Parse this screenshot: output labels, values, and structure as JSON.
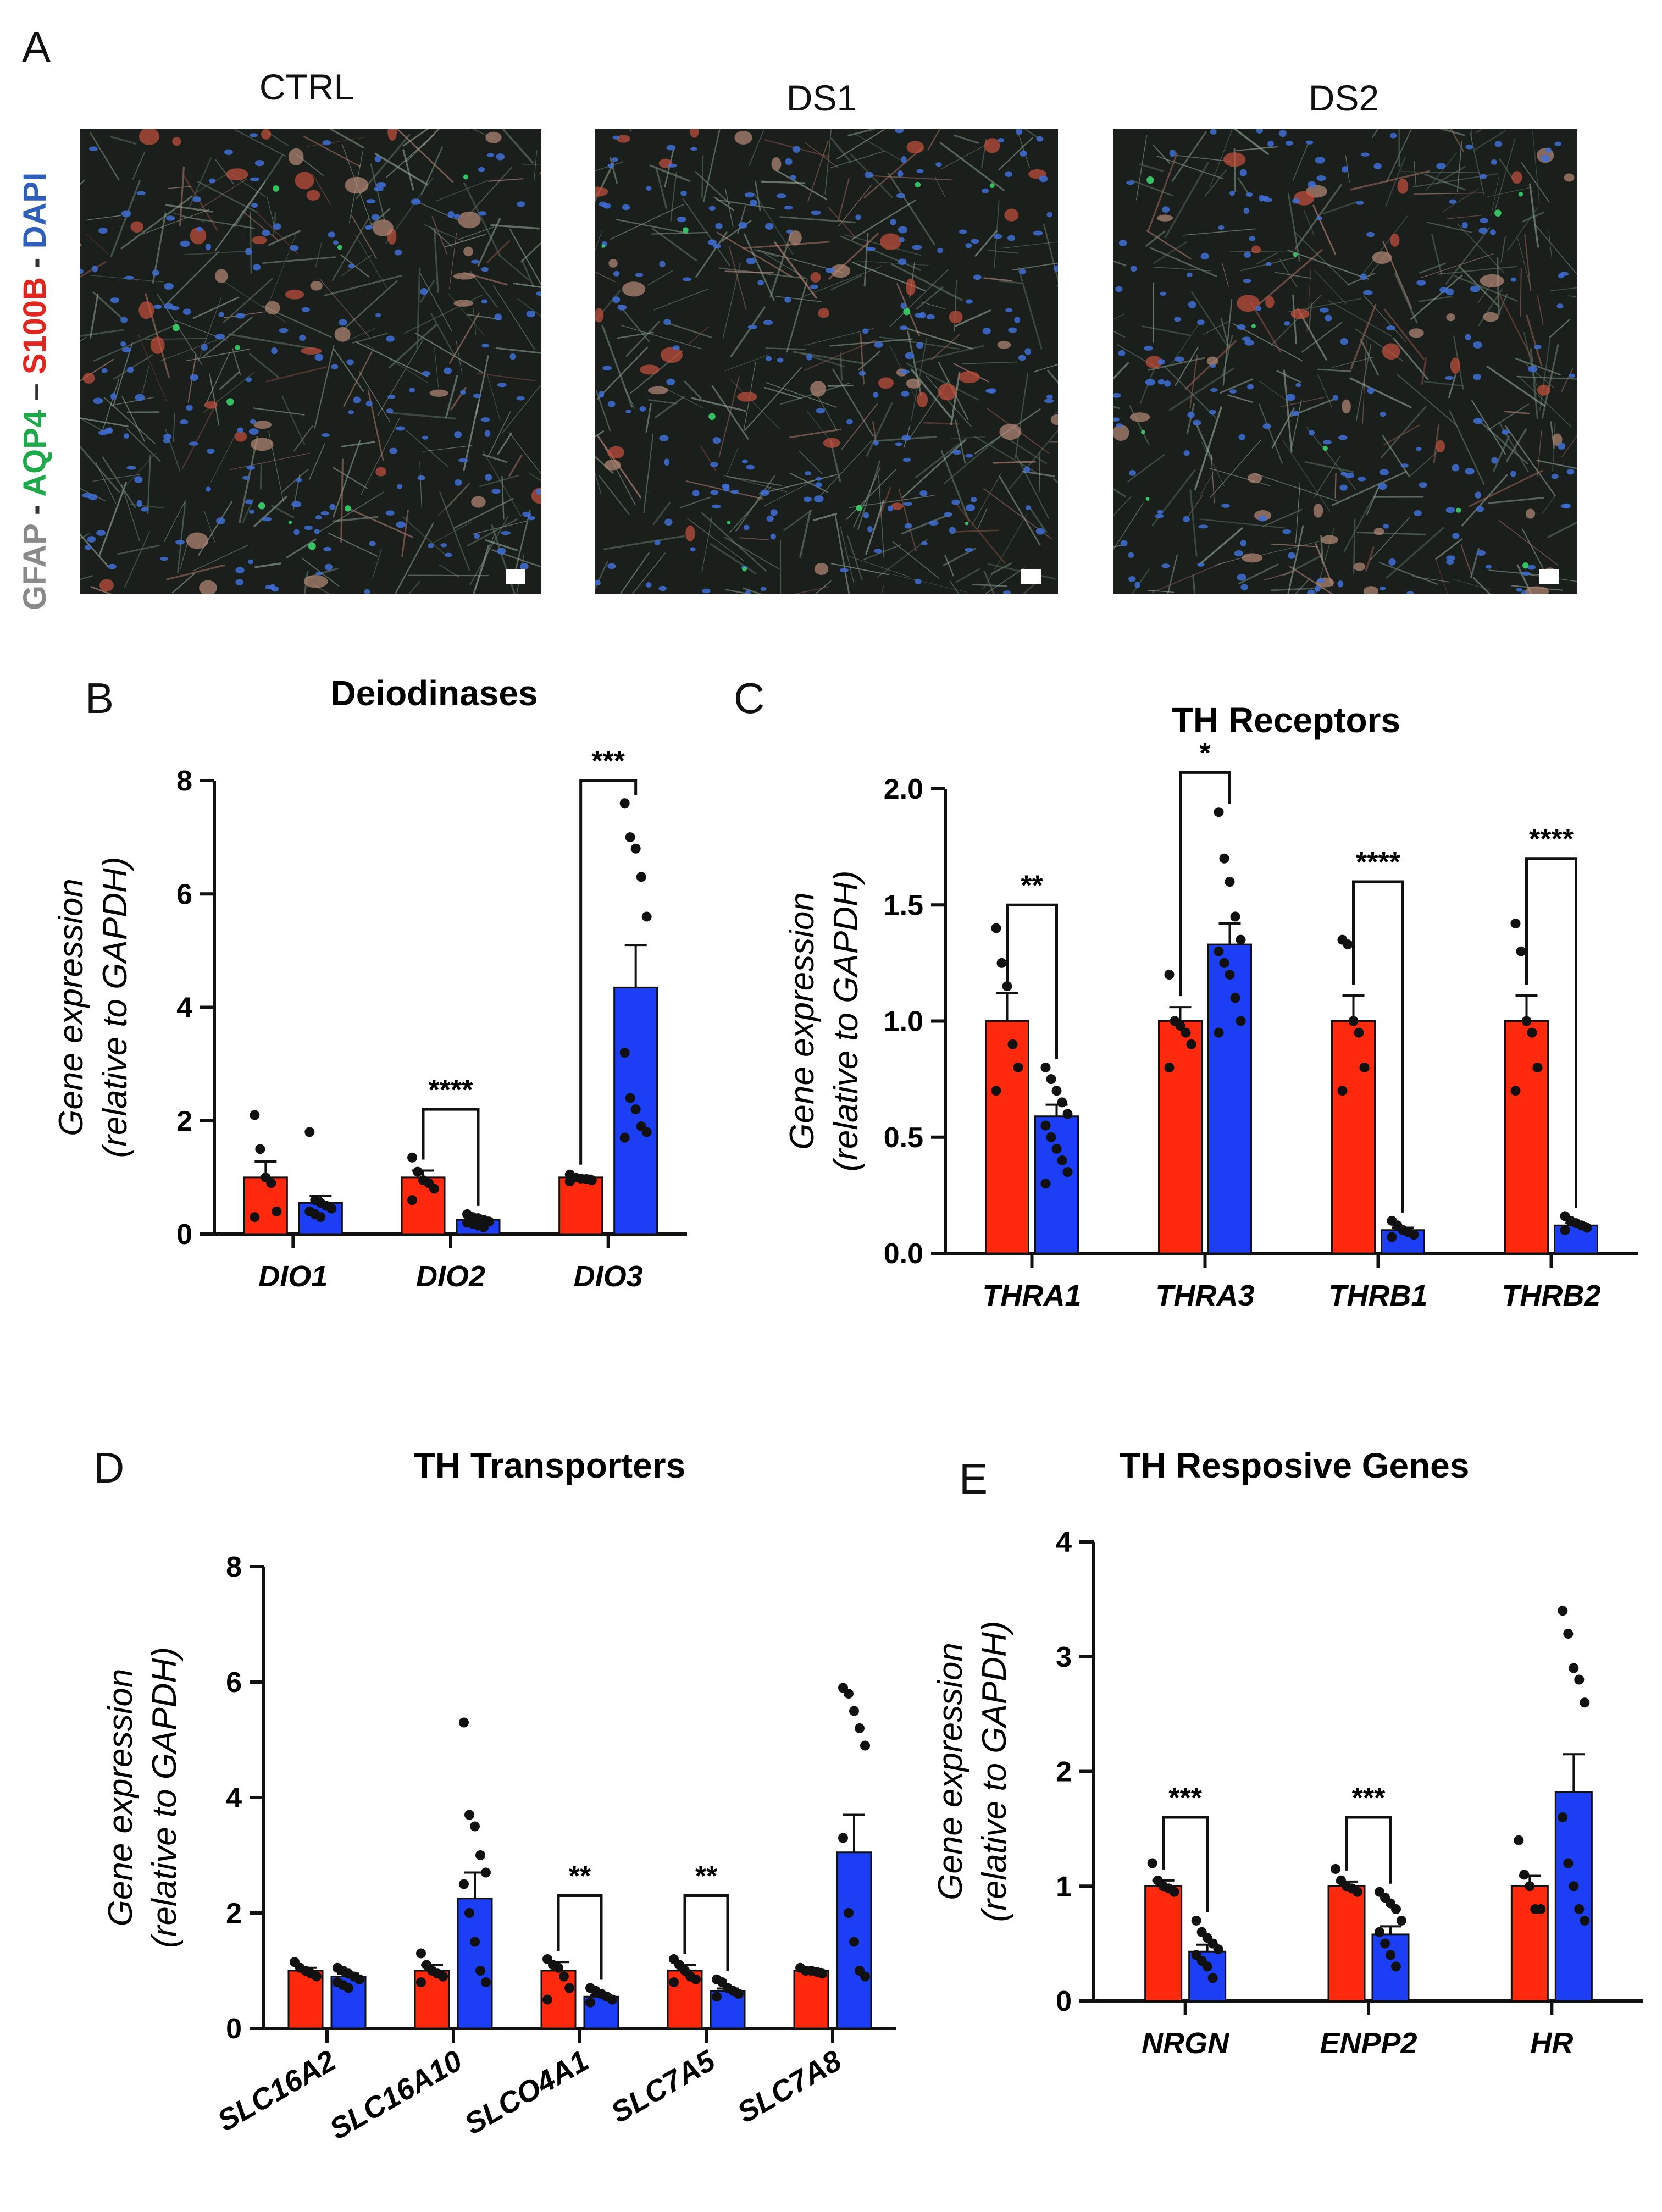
{
  "panel_letters": {
    "a": "A",
    "b": "B",
    "c": "C",
    "d": "D",
    "e": "E"
  },
  "micrographs": [
    {
      "title": "CTRL"
    },
    {
      "title": "DS1"
    },
    {
      "title": "DS2"
    }
  ],
  "stain_label": {
    "parts": [
      {
        "text": "GFAP",
        "color": "#8a8a8a"
      },
      {
        "text": " - ",
        "color": "#333333"
      },
      {
        "text": "AQP4",
        "color": "#1fa84a"
      },
      {
        "text": " – ",
        "color": "#333333"
      },
      {
        "text": "S100B",
        "color": "#e0261f"
      },
      {
        "text": " - ",
        "color": "#333333"
      },
      {
        "text": "DAPI",
        "color": "#2f5fb8"
      }
    ]
  },
  "colors": {
    "ctrl": "#ff2a0e",
    "ds": "#1c3ff5"
  },
  "chart_data": [
    {
      "panel": "B",
      "type": "bar",
      "title": "Deiodinases",
      "ylabel_line1": "Gene expression",
      "ylabel_line2": "(relative to GAPDH)",
      "ylim": [
        0,
        8
      ],
      "yticks": [
        "0",
        "2",
        "4",
        "6",
        "8"
      ],
      "ytick_values": [
        0,
        2,
        4,
        6,
        8
      ],
      "categories": [
        "DIO1",
        "DIO2",
        "DIO3"
      ],
      "series": [
        {
          "values": [
            1.0,
            1.0,
            1.0
          ],
          "sem": [
            0.28,
            0.12,
            0.03
          ],
          "points": [
            [
              2.1,
              1.5,
              1.0,
              0.9,
              0.4,
              0.3
            ],
            [
              1.35,
              1.1,
              0.95,
              0.9,
              0.8,
              0.6
            ],
            [
              1.05,
              1.0,
              0.98,
              0.97,
              0.95,
              0.93
            ]
          ]
        },
        {
          "values": [
            0.55,
            0.25,
            4.35
          ],
          "sem": [
            0.12,
            0.04,
            0.75
          ],
          "points": [
            [
              1.8,
              0.6,
              0.55,
              0.5,
              0.45,
              0.4,
              0.35,
              0.3
            ],
            [
              0.35,
              0.3,
              0.28,
              0.25,
              0.22,
              0.2,
              0.18,
              0.15,
              0.12
            ],
            [
              7.6,
              7.0,
              6.8,
              6.3,
              5.6,
              3.2,
              2.4,
              2.2,
              1.9,
              1.8,
              1.7
            ]
          ]
        }
      ],
      "significance": [
        {
          "category": "DIO2",
          "label": "****",
          "y": 2.2
        },
        {
          "category": "DIO3",
          "label": "***",
          "y": 8.0
        }
      ]
    },
    {
      "panel": "C",
      "type": "bar",
      "title": "TH Receptors",
      "ylabel_line1": "Gene expression",
      "ylabel_line2": "(relative to GAPDH)",
      "ylim": [
        0,
        2.0
      ],
      "yticks": [
        "0.0",
        "0.5",
        "1.0",
        "1.5",
        "2.0"
      ],
      "ytick_values": [
        0,
        0.5,
        1.0,
        1.5,
        2.0
      ],
      "categories": [
        "THRA1",
        "THRA3",
        "THRB1",
        "THRB2"
      ],
      "series": [
        {
          "values": [
            1.0,
            1.0,
            1.0,
            1.0
          ],
          "sem": [
            0.12,
            0.06,
            0.11,
            0.11
          ],
          "points": [
            [
              1.4,
              1.25,
              1.15,
              0.9,
              0.8,
              0.7
            ],
            [
              1.2,
              1.0,
              0.98,
              0.95,
              0.9,
              0.8
            ],
            [
              1.35,
              1.33,
              1.0,
              0.95,
              0.8,
              0.7
            ],
            [
              1.42,
              1.3,
              1.0,
              0.95,
              0.8,
              0.7
            ]
          ]
        },
        {
          "values": [
            0.59,
            1.33,
            0.1,
            0.12
          ],
          "sem": [
            0.05,
            0.09,
            0.01,
            0.01
          ],
          "points": [
            [
              0.8,
              0.75,
              0.7,
              0.65,
              0.6,
              0.55,
              0.5,
              0.45,
              0.4,
              0.35,
              0.3
            ],
            [
              1.9,
              1.7,
              1.6,
              1.45,
              1.35,
              1.3,
              1.25,
              1.2,
              1.1,
              1.0,
              0.95
            ],
            [
              0.14,
              0.12,
              0.1,
              0.09,
              0.08,
              0.07
            ],
            [
              0.16,
              0.14,
              0.13,
              0.12,
              0.11,
              0.1
            ]
          ]
        }
      ],
      "significance": [
        {
          "category": "THRA1",
          "label": "**",
          "y": 1.5
        },
        {
          "category": "THRA3",
          "label": "*",
          "y": 2.07
        },
        {
          "category": "THRB1",
          "label": "****",
          "y": 1.6
        },
        {
          "category": "THRB2",
          "label": "****",
          "y": 1.7
        }
      ]
    },
    {
      "panel": "D",
      "type": "bar",
      "title": "TH Transporters",
      "ylabel_line1": "Gene expression",
      "ylabel_line2": "(relative to GAPDH)",
      "ylim": [
        0,
        8
      ],
      "yticks": [
        "0",
        "2",
        "4",
        "6",
        "8"
      ],
      "ytick_values": [
        0,
        2,
        4,
        6,
        8
      ],
      "categories": [
        "SLC16A2",
        "SLC16A10",
        "SLCO4A1",
        "SLC7A5",
        "SLC7A8"
      ],
      "series": [
        {
          "values": [
            1.0,
            1.0,
            1.0,
            1.0,
            1.0
          ],
          "sem": [
            0.05,
            0.1,
            0.15,
            0.1,
            0.03
          ],
          "points": [
            [
              1.15,
              1.05,
              1.0,
              0.95,
              0.9
            ],
            [
              1.3,
              1.1,
              1.0,
              0.95,
              0.9,
              0.8
            ],
            [
              1.2,
              1.1,
              1.05,
              0.9,
              0.7,
              0.5
            ],
            [
              1.2,
              1.1,
              1.0,
              0.9,
              0.85,
              0.8
            ],
            [
              1.05,
              1.0,
              1.0,
              0.98,
              0.95
            ]
          ]
        },
        {
          "values": [
            0.9,
            2.25,
            0.55,
            0.65,
            3.05
          ],
          "sem": [
            0.05,
            0.45,
            0.03,
            0.04,
            0.65
          ],
          "points": [
            [
              1.05,
              1.0,
              0.95,
              0.9,
              0.85,
              0.8,
              0.75,
              0.7
            ],
            [
              5.3,
              3.7,
              3.5,
              3.0,
              2.7,
              2.5,
              2.0,
              1.5,
              1.0,
              0.8
            ],
            [
              0.7,
              0.65,
              0.6,
              0.55,
              0.5,
              0.45
            ],
            [
              0.85,
              0.8,
              0.7,
              0.65,
              0.6,
              0.55
            ],
            [
              5.9,
              5.8,
              5.5,
              5.2,
              4.9,
              3.3,
              2.0,
              1.5,
              1.0,
              0.9
            ]
          ]
        }
      ],
      "significance": [
        {
          "category": "SLCO4A1",
          "label": "**",
          "y": 2.3
        },
        {
          "category": "SLC7A5",
          "label": "**",
          "y": 2.3
        }
      ]
    },
    {
      "panel": "E",
      "type": "bar",
      "title": "TH Resposive Genes",
      "ylabel_line1": "Gene expression",
      "ylabel_line2": "(relative to GAPDH)",
      "ylim": [
        0,
        4
      ],
      "yticks": [
        "0",
        "1",
        "2",
        "3",
        "4"
      ],
      "ytick_values": [
        0,
        1,
        2,
        3,
        4
      ],
      "categories": [
        "NRGN",
        "ENPP2",
        "HR"
      ],
      "series": [
        {
          "values": [
            1.0,
            1.0,
            1.0
          ],
          "sem": [
            0.05,
            0.04,
            0.09
          ],
          "points": [
            [
              1.2,
              1.05,
              1.0,
              0.98,
              0.95
            ],
            [
              1.15,
              1.05,
              1.0,
              0.98,
              0.95
            ],
            [
              1.4,
              1.1,
              1.0,
              0.8,
              0.8
            ]
          ]
        },
        {
          "values": [
            0.43,
            0.58,
            1.82
          ],
          "sem": [
            0.06,
            0.07,
            0.33
          ],
          "points": [
            [
              0.7,
              0.6,
              0.55,
              0.5,
              0.45,
              0.4,
              0.35,
              0.3,
              0.2
            ],
            [
              0.95,
              0.9,
              0.85,
              0.8,
              0.7,
              0.6,
              0.5,
              0.4,
              0.3
            ],
            [
              3.4,
              3.2,
              2.9,
              2.8,
              2.6,
              1.6,
              1.2,
              1.0,
              0.8,
              0.7
            ]
          ]
        }
      ],
      "significance": [
        {
          "category": "NRGN",
          "label": "***",
          "y": 1.6
        },
        {
          "category": "ENPP2",
          "label": "***",
          "y": 1.6
        }
      ]
    }
  ]
}
